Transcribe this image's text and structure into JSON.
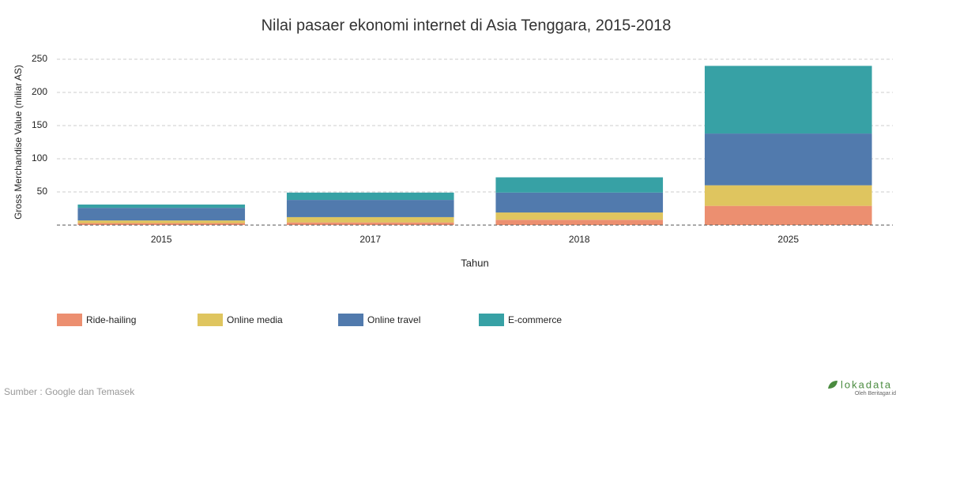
{
  "chart_data": {
    "type": "stacked-bar",
    "title": "Nilai pasaer ekonomi internet di Asia Tenggara, 2015-2018",
    "x_label": "Tahun",
    "y_label": "Gross Merchandise Value (miliar AS)",
    "categories": [
      "2015",
      "2017",
      "2018",
      "2025"
    ],
    "series": [
      {
        "name": "Ride-hailing",
        "color": "#ec8f70",
        "values": [
          3,
          4,
          8,
          29
        ]
      },
      {
        "name": "Online media",
        "color": "#dfc55f",
        "values": [
          4,
          8,
          11,
          31
        ]
      },
      {
        "name": "Online travel",
        "color": "#517aad",
        "values": [
          19,
          26,
          30,
          78
        ]
      },
      {
        "name": "E-commerce",
        "color": "#37a1a5",
        "values": [
          5,
          11,
          23,
          102
        ]
      }
    ],
    "ylim": [
      0,
      250
    ],
    "yticks": [
      50,
      100,
      150,
      200,
      250
    ],
    "grid": true,
    "legend": "bottom-left",
    "source": "Sumber : Google dan Temasek",
    "logo": "lokadata",
    "logo_sub": "Oleh Beritagar.id"
  }
}
